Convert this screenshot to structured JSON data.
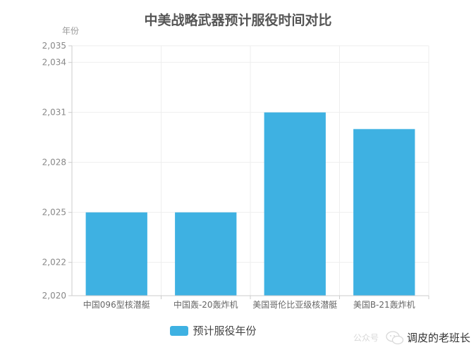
{
  "chart_data": {
    "type": "bar",
    "title": "中美战略武器预计服役时间对比",
    "ylabel": "年份",
    "xlabel": "",
    "categories": [
      "中国096型核潜艇",
      "中国轰-20轰炸机",
      "美国哥伦比亚级核潜艇",
      "美国B-21轰炸机"
    ],
    "series": [
      {
        "name": "预计服役年份",
        "values": [
          2025,
          2025,
          2031,
          2030
        ]
      }
    ],
    "ylim": [
      2020,
      2035
    ],
    "y_ticks": [
      2020,
      2022,
      2025,
      2028,
      2031,
      2034,
      2035
    ],
    "y_tick_labels": [
      "2,020",
      "2,022",
      "2,025",
      "2,028",
      "2,031",
      "2,034",
      "2,035"
    ],
    "grid": true,
    "legend_position": "bottom-center",
    "colors": {
      "bar": "#3eb1e2",
      "grid": "#eeeeee",
      "axis": "#cccccc"
    }
  },
  "watermark": {
    "faint_text": "公众号",
    "text": "调皮的老班长"
  }
}
